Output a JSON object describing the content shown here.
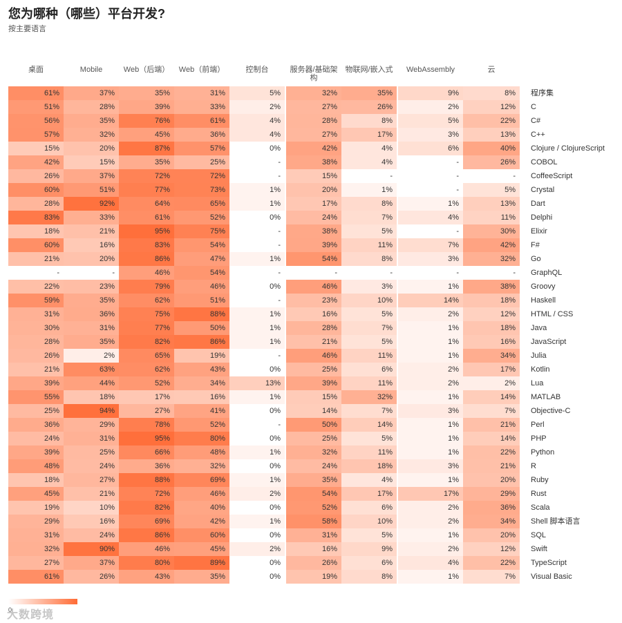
{
  "header": {
    "title": "您为哪种（哪些）平台开发?",
    "subtitle": "按主要语言"
  },
  "legend": {
    "min_label": "0"
  },
  "watermark": "大数跨境",
  "colors": {
    "high": "#ff6b35",
    "low": "#ffffff"
  },
  "chart_data": {
    "type": "heatmap",
    "title": "您为哪种（哪些）平台开发?",
    "subtitle": "按主要语言",
    "columns": [
      "桌面",
      "Mobile",
      "Web（后端）",
      "Web（前端）",
      "控制台",
      "服务器/基础架构",
      "物联网/嵌入式",
      "WebAssembly",
      "云"
    ],
    "rows": [
      "程序集",
      "C",
      "C#",
      "C++",
      "Clojure / ClojureScript",
      "COBOL",
      "CoffeeScript",
      "Crystal",
      "Dart",
      "Delphi",
      "Elixir",
      "F#",
      "Go",
      "GraphQL",
      "Groovy",
      "Haskell",
      "HTML / CSS",
      "Java",
      "JavaScript",
      "Julia",
      "Kotlin",
      "Lua",
      "MATLAB",
      "Objective-C",
      "Perl",
      "PHP",
      "Python",
      "R",
      "Ruby",
      "Rust",
      "Scala",
      "Shell 脚本语言",
      "SQL",
      "Swift",
      "TypeScript",
      "Visual Basic"
    ],
    "values": [
      [
        61,
        37,
        35,
        31,
        5,
        32,
        35,
        9,
        8
      ],
      [
        51,
        28,
        39,
        33,
        2,
        27,
        26,
        2,
        12
      ],
      [
        56,
        35,
        76,
        61,
        4,
        28,
        8,
        5,
        22
      ],
      [
        57,
        32,
        45,
        36,
        4,
        27,
        17,
        3,
        13
      ],
      [
        15,
        20,
        87,
        57,
        0,
        42,
        4,
        6,
        40
      ],
      [
        42,
        15,
        35,
        25,
        null,
        38,
        4,
        null,
        26
      ],
      [
        26,
        37,
        72,
        72,
        null,
        15,
        null,
        null,
        null
      ],
      [
        60,
        51,
        77,
        73,
        1,
        20,
        1,
        null,
        5
      ],
      [
        28,
        92,
        64,
        65,
        1,
        17,
        8,
        1,
        13
      ],
      [
        83,
        33,
        61,
        52,
        0,
        24,
        7,
        4,
        11
      ],
      [
        18,
        21,
        95,
        75,
        null,
        38,
        5,
        null,
        30
      ],
      [
        60,
        16,
        83,
        54,
        null,
        39,
        11,
        7,
        42
      ],
      [
        21,
        20,
        86,
        47,
        1,
        54,
        8,
        3,
        32
      ],
      [
        null,
        null,
        46,
        54,
        null,
        null,
        null,
        null,
        null
      ],
      [
        22,
        23,
        79,
        46,
        0,
        46,
        3,
        1,
        38
      ],
      [
        59,
        35,
        62,
        51,
        null,
        23,
        10,
        14,
        18
      ],
      [
        31,
        36,
        75,
        88,
        1,
        16,
        5,
        2,
        12
      ],
      [
        30,
        31,
        77,
        50,
        1,
        28,
        7,
        1,
        18
      ],
      [
        28,
        35,
        82,
        86,
        1,
        21,
        5,
        1,
        16
      ],
      [
        26,
        2,
        65,
        19,
        null,
        46,
        11,
        1,
        34
      ],
      [
        21,
        63,
        62,
        43,
        0,
        25,
        6,
        2,
        17
      ],
      [
        39,
        44,
        52,
        34,
        13,
        39,
        11,
        2,
        2
      ],
      [
        55,
        18,
        17,
        16,
        1,
        15,
        32,
        1,
        14
      ],
      [
        25,
        94,
        27,
        41,
        0,
        14,
        7,
        3,
        7
      ],
      [
        36,
        29,
        78,
        52,
        null,
        50,
        14,
        1,
        21
      ],
      [
        24,
        31,
        95,
        80,
        0,
        25,
        5,
        1,
        14
      ],
      [
        39,
        25,
        66,
        48,
        1,
        32,
        11,
        1,
        22
      ],
      [
        48,
        24,
        36,
        32,
        0,
        24,
        18,
        3,
        21
      ],
      [
        18,
        27,
        88,
        69,
        1,
        35,
        4,
        1,
        20
      ],
      [
        45,
        21,
        72,
        46,
        2,
        54,
        17,
        17,
        29
      ],
      [
        19,
        10,
        82,
        40,
        0,
        52,
        6,
        2,
        36
      ],
      [
        29,
        16,
        69,
        42,
        1,
        58,
        10,
        2,
        34
      ],
      [
        31,
        24,
        86,
        60,
        0,
        31,
        5,
        1,
        20
      ],
      [
        32,
        90,
        46,
        45,
        2,
        16,
        9,
        2,
        12
      ],
      [
        27,
        37,
        80,
        89,
        0,
        26,
        6,
        4,
        22
      ],
      [
        61,
        26,
        43,
        35,
        0,
        19,
        8,
        1,
        7
      ]
    ],
    "value_format": "{v}%",
    "missing_label": "-",
    "color_scale": [
      "#ffffff",
      "#ff6b35"
    ]
  }
}
